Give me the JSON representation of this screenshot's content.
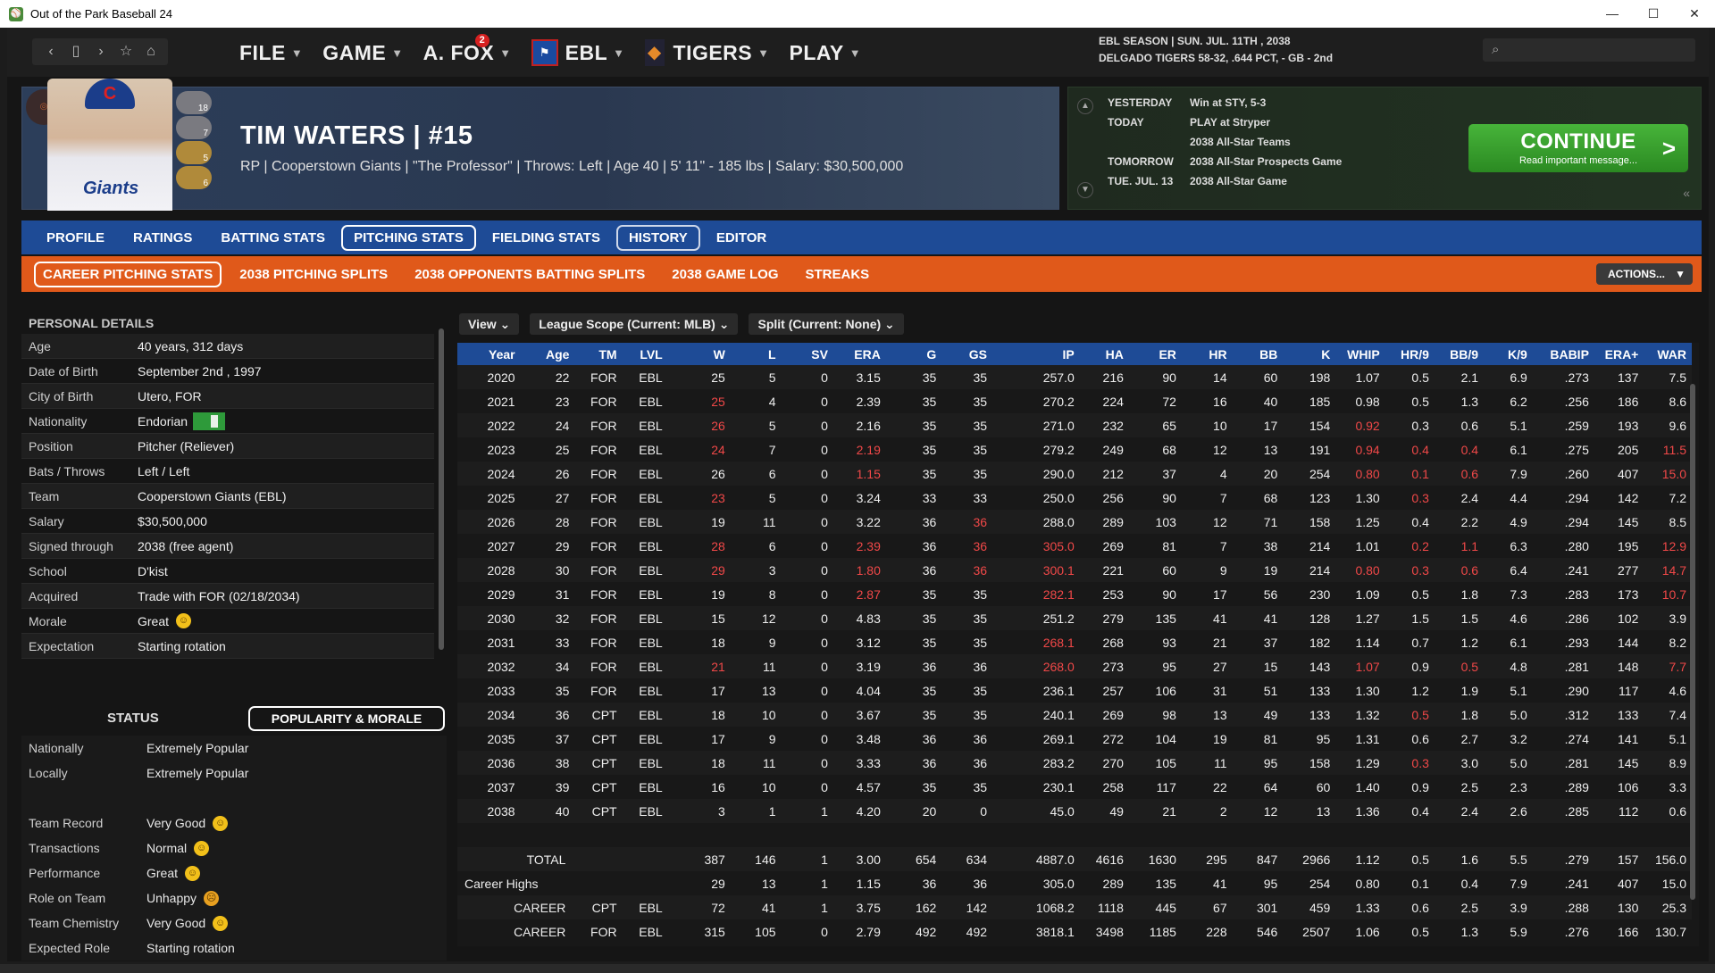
{
  "window": {
    "title": "Out of the Park Baseball 24",
    "minimize": "—",
    "maximize": "☐",
    "close": "✕"
  },
  "topbar": {
    "menus": [
      {
        "label": "FILE"
      },
      {
        "label": "GAME"
      },
      {
        "label": "A. FOX",
        "badge": "2"
      },
      {
        "label": "EBL"
      },
      {
        "label": "TIGERS"
      },
      {
        "label": "PLAY"
      }
    ],
    "season_line1": "EBL SEASON  |  SUN. JUL. 11TH , 2038",
    "season_line2": "DELGADO TIGERS  58-32, .644 PCT, - GB - 2nd",
    "search_placeholder": ""
  },
  "player": {
    "name": "TIM WATERS  |  #15",
    "info": "RP | Cooperstown Giants  |  \"The Professor\"  |  Throws: Left  |  Age 40  |  5' 11\" - 185 lbs  |  Salary: $30,500,000",
    "cap_letter": "C",
    "jersey_text": "Giants",
    "award_numbers": [
      "18",
      "7",
      "5",
      "6"
    ]
  },
  "schedule": {
    "rows": [
      {
        "label": "YESTERDAY",
        "value": "Win at STY, 5-3"
      },
      {
        "label": "TODAY",
        "value": "PLAY at Stryper"
      },
      {
        "label": "",
        "value": "2038 All-Star Teams"
      },
      {
        "label": "TOMORROW",
        "value": "2038 All-Star Prospects Game"
      },
      {
        "label": "TUE. JUL. 13",
        "value": "2038 All-Star Game"
      }
    ],
    "continue_label": "CONTINUE",
    "continue_sub": "Read important message...",
    "continue_arrow": ">"
  },
  "tabs": [
    "PROFILE",
    "RATINGS",
    "BATTING STATS",
    "PITCHING STATS",
    "FIELDING STATS",
    "HISTORY",
    "EDITOR"
  ],
  "subtabs": [
    "CAREER PITCHING STATS",
    "2038 PITCHING SPLITS",
    "2038 OPPONENTS BATTING SPLITS",
    "2038 GAME LOG",
    "STREAKS"
  ],
  "actions_label": "ACTIONS...",
  "personal": {
    "title": "PERSONAL DETAILS",
    "rows": [
      {
        "k": "Age",
        "v": "40 years, 312 days"
      },
      {
        "k": "Date of Birth",
        "v": "September 2nd , 1997"
      },
      {
        "k": "City of Birth",
        "v": "Utero, FOR"
      },
      {
        "k": "Nationality",
        "v": "Endorian"
      },
      {
        "k": "Position",
        "v": "Pitcher (Reliever)"
      },
      {
        "k": "Bats / Throws",
        "v": "Left / Left"
      },
      {
        "k": "Team",
        "v": "Cooperstown Giants (EBL)"
      },
      {
        "k": "Salary",
        "v": "$30,500,000"
      },
      {
        "k": "Signed through",
        "v": "2038 (free agent)"
      },
      {
        "k": "School",
        "v": "D'kist"
      },
      {
        "k": "Acquired",
        "v": "Trade with FOR (02/18/2034)"
      },
      {
        "k": "Morale",
        "v": "Great"
      },
      {
        "k": "Expectation",
        "v": "Starting rotation"
      }
    ]
  },
  "status": {
    "tab_status": "STATUS",
    "tab_popularity": "POPULARITY & MORALE",
    "rows": [
      {
        "k": "Nationally",
        "v": "Extremely Popular"
      },
      {
        "k": "Locally",
        "v": "Extremely Popular"
      },
      {
        "k": "",
        "v": ""
      },
      {
        "k": "Team Record",
        "v": "Very Good"
      },
      {
        "k": "Transactions",
        "v": "Normal"
      },
      {
        "k": "Performance",
        "v": "Great"
      },
      {
        "k": "Role on Team",
        "v": "Unhappy"
      },
      {
        "k": "Team Chemistry",
        "v": "Very Good"
      },
      {
        "k": "Expected Role",
        "v": "Starting rotation"
      }
    ]
  },
  "filters": {
    "view": "View",
    "scope": "League Scope (Current: MLB)",
    "split": "Split (Current: None)"
  },
  "stats": {
    "headers": [
      "Year",
      "Age",
      "TM",
      "LVL",
      "W",
      "L",
      "SV",
      "ERA",
      "G",
      "GS",
      "IP",
      "HA",
      "ER",
      "HR",
      "BB",
      "K",
      "WHIP",
      "HR/9",
      "BB/9",
      "K/9",
      "BABIP",
      "ERA+",
      "WAR"
    ],
    "rows": [
      [
        "2020",
        "22",
        "FOR",
        "EBL",
        "25",
        "5",
        "0",
        "3.15",
        "35",
        "35",
        "257.0",
        "216",
        "90",
        "14",
        "60",
        "198",
        "1.07",
        "0.5",
        "2.1",
        "6.9",
        ".273",
        "137",
        "7.5"
      ],
      [
        "2021",
        "23",
        "FOR",
        "EBL",
        "25",
        "4",
        "0",
        "2.39",
        "35",
        "35",
        "270.2",
        "224",
        "72",
        "16",
        "40",
        "185",
        "0.98",
        "0.5",
        "1.3",
        "6.2",
        ".256",
        "186",
        "8.6"
      ],
      [
        "2022",
        "24",
        "FOR",
        "EBL",
        "26",
        "5",
        "0",
        "2.16",
        "35",
        "35",
        "271.0",
        "232",
        "65",
        "10",
        "17",
        "154",
        "0.92",
        "0.3",
        "0.6",
        "5.1",
        ".259",
        "193",
        "9.6"
      ],
      [
        "2023",
        "25",
        "FOR",
        "EBL",
        "24",
        "7",
        "0",
        "2.19",
        "35",
        "35",
        "279.2",
        "249",
        "68",
        "12",
        "13",
        "191",
        "0.94",
        "0.4",
        "0.4",
        "6.1",
        ".275",
        "205",
        "11.5"
      ],
      [
        "2024",
        "26",
        "FOR",
        "EBL",
        "26",
        "6",
        "0",
        "1.15",
        "35",
        "35",
        "290.0",
        "212",
        "37",
        "4",
        "20",
        "254",
        "0.80",
        "0.1",
        "0.6",
        "7.9",
        ".260",
        "407",
        "15.0"
      ],
      [
        "2025",
        "27",
        "FOR",
        "EBL",
        "23",
        "5",
        "0",
        "3.24",
        "33",
        "33",
        "250.0",
        "256",
        "90",
        "7",
        "68",
        "123",
        "1.30",
        "0.3",
        "2.4",
        "4.4",
        ".294",
        "142",
        "7.2"
      ],
      [
        "2026",
        "28",
        "FOR",
        "EBL",
        "19",
        "11",
        "0",
        "3.22",
        "36",
        "36",
        "288.0",
        "289",
        "103",
        "12",
        "71",
        "158",
        "1.25",
        "0.4",
        "2.2",
        "4.9",
        ".294",
        "145",
        "8.5"
      ],
      [
        "2027",
        "29",
        "FOR",
        "EBL",
        "28",
        "6",
        "0",
        "2.39",
        "36",
        "36",
        "305.0",
        "269",
        "81",
        "7",
        "38",
        "214",
        "1.01",
        "0.2",
        "1.1",
        "6.3",
        ".280",
        "195",
        "12.9"
      ],
      [
        "2028",
        "30",
        "FOR",
        "EBL",
        "29",
        "3",
        "0",
        "1.80",
        "36",
        "36",
        "300.1",
        "221",
        "60",
        "9",
        "19",
        "214",
        "0.80",
        "0.3",
        "0.6",
        "6.4",
        ".241",
        "277",
        "14.7"
      ],
      [
        "2029",
        "31",
        "FOR",
        "EBL",
        "19",
        "8",
        "0",
        "2.87",
        "35",
        "35",
        "282.1",
        "253",
        "90",
        "17",
        "56",
        "230",
        "1.09",
        "0.5",
        "1.8",
        "7.3",
        ".283",
        "173",
        "10.7"
      ],
      [
        "2030",
        "32",
        "FOR",
        "EBL",
        "15",
        "12",
        "0",
        "4.83",
        "35",
        "35",
        "251.2",
        "279",
        "135",
        "41",
        "41",
        "128",
        "1.27",
        "1.5",
        "1.5",
        "4.6",
        ".286",
        "102",
        "3.9"
      ],
      [
        "2031",
        "33",
        "FOR",
        "EBL",
        "18",
        "9",
        "0",
        "3.12",
        "35",
        "35",
        "268.1",
        "268",
        "93",
        "21",
        "37",
        "182",
        "1.14",
        "0.7",
        "1.2",
        "6.1",
        ".293",
        "144",
        "8.2"
      ],
      [
        "2032",
        "34",
        "FOR",
        "EBL",
        "21",
        "11",
        "0",
        "3.19",
        "36",
        "36",
        "268.0",
        "273",
        "95",
        "27",
        "15",
        "143",
        "1.07",
        "0.9",
        "0.5",
        "4.8",
        ".281",
        "148",
        "7.7"
      ],
      [
        "2033",
        "35",
        "FOR",
        "EBL",
        "17",
        "13",
        "0",
        "4.04",
        "35",
        "35",
        "236.1",
        "257",
        "106",
        "31",
        "51",
        "133",
        "1.30",
        "1.2",
        "1.9",
        "5.1",
        ".290",
        "117",
        "4.6"
      ],
      [
        "2034",
        "36",
        "CPT",
        "EBL",
        "18",
        "10",
        "0",
        "3.67",
        "35",
        "35",
        "240.1",
        "269",
        "98",
        "13",
        "49",
        "133",
        "1.32",
        "0.5",
        "1.8",
        "5.0",
        ".312",
        "133",
        "7.4"
      ],
      [
        "2035",
        "37",
        "CPT",
        "EBL",
        "17",
        "9",
        "0",
        "3.48",
        "36",
        "36",
        "269.1",
        "272",
        "104",
        "19",
        "81",
        "95",
        "1.31",
        "0.6",
        "2.7",
        "3.2",
        ".274",
        "141",
        "5.1"
      ],
      [
        "2036",
        "38",
        "CPT",
        "EBL",
        "18",
        "11",
        "0",
        "3.33",
        "36",
        "36",
        "283.2",
        "270",
        "105",
        "11",
        "95",
        "158",
        "1.29",
        "0.3",
        "3.0",
        "5.0",
        ".281",
        "145",
        "8.9"
      ],
      [
        "2037",
        "39",
        "CPT",
        "EBL",
        "16",
        "10",
        "0",
        "4.57",
        "35",
        "35",
        "230.1",
        "258",
        "117",
        "22",
        "64",
        "60",
        "1.40",
        "0.9",
        "2.5",
        "2.3",
        ".289",
        "106",
        "3.3"
      ],
      [
        "2038",
        "40",
        "CPT",
        "EBL",
        "3",
        "1",
        "1",
        "4.20",
        "20",
        "0",
        "45.0",
        "49",
        "21",
        "2",
        "12",
        "13",
        "1.36",
        "0.4",
        "2.4",
        "2.6",
        ".285",
        "112",
        "0.6"
      ]
    ],
    "red_cells": [
      [
        1,
        4
      ],
      [
        2,
        4
      ],
      [
        2,
        16
      ],
      [
        3,
        4
      ],
      [
        3,
        7
      ],
      [
        3,
        16
      ],
      [
        3,
        17
      ],
      [
        3,
        18
      ],
      [
        3,
        22
      ],
      [
        4,
        7
      ],
      [
        4,
        16
      ],
      [
        4,
        17
      ],
      [
        4,
        18
      ],
      [
        4,
        22
      ],
      [
        5,
        4
      ],
      [
        5,
        17
      ],
      [
        6,
        9
      ],
      [
        7,
        4
      ],
      [
        7,
        7
      ],
      [
        7,
        9
      ],
      [
        7,
        10
      ],
      [
        7,
        17
      ],
      [
        7,
        18
      ],
      [
        7,
        22
      ],
      [
        8,
        4
      ],
      [
        8,
        7
      ],
      [
        8,
        9
      ],
      [
        8,
        10
      ],
      [
        8,
        16
      ],
      [
        8,
        17
      ],
      [
        8,
        18
      ],
      [
        8,
        22
      ],
      [
        9,
        7
      ],
      [
        9,
        10
      ],
      [
        9,
        22
      ],
      [
        11,
        10
      ],
      [
        12,
        4
      ],
      [
        12,
        10
      ],
      [
        12,
        16
      ],
      [
        12,
        18
      ],
      [
        12,
        22
      ],
      [
        14,
        17
      ],
      [
        16,
        17
      ]
    ],
    "totals": [
      {
        "label": "TOTAL",
        "tm": "",
        "lvl": "",
        "vals": [
          "387",
          "146",
          "1",
          "3.00",
          "654",
          "634",
          "4887.0",
          "4616",
          "1630",
          "295",
          "847",
          "2966",
          "1.12",
          "0.5",
          "1.6",
          "5.5",
          ".279",
          "157",
          "156.0"
        ]
      },
      {
        "label": "Career Highs",
        "tm": "",
        "lvl": "",
        "vals": [
          "29",
          "13",
          "1",
          "1.15",
          "36",
          "36",
          "305.0",
          "289",
          "135",
          "41",
          "95",
          "254",
          "0.80",
          "0.1",
          "0.4",
          "7.9",
          ".241",
          "407",
          "15.0"
        ]
      },
      {
        "label": "CAREER",
        "tm": "CPT",
        "lvl": "EBL",
        "vals": [
          "72",
          "41",
          "1",
          "3.75",
          "162",
          "142",
          "1068.2",
          "1118",
          "445",
          "67",
          "301",
          "459",
          "1.33",
          "0.6",
          "2.5",
          "3.9",
          ".288",
          "130",
          "25.3"
        ]
      },
      {
        "label": "CAREER",
        "tm": "FOR",
        "lvl": "EBL",
        "vals": [
          "315",
          "105",
          "0",
          "2.79",
          "492",
          "492",
          "3818.1",
          "3498",
          "1185",
          "228",
          "546",
          "2507",
          "1.06",
          "0.5",
          "1.3",
          "5.9",
          ".276",
          "166",
          "130.7"
        ]
      }
    ]
  }
}
